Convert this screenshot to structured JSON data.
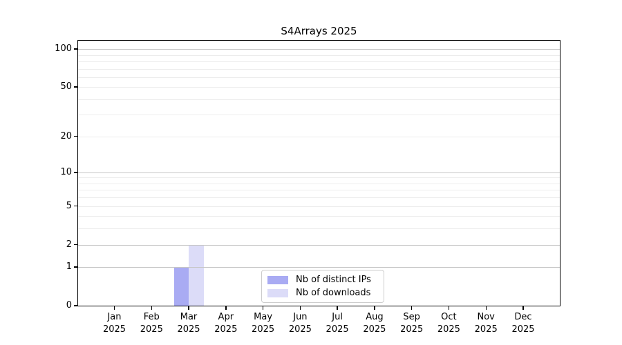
{
  "chart_data": {
    "type": "bar",
    "title": "S4Arrays 2025",
    "x_year_label": "2025",
    "categories": [
      "Jan",
      "Feb",
      "Mar",
      "Apr",
      "May",
      "Jun",
      "Jul",
      "Aug",
      "Sep",
      "Oct",
      "Nov",
      "Dec"
    ],
    "series": [
      {
        "name": "Nb of distinct IPs",
        "color": "#a9abf3",
        "values": [
          0,
          0,
          1,
          0,
          0,
          0,
          0,
          0,
          0,
          0,
          0,
          0
        ]
      },
      {
        "name": "Nb of downloads",
        "color": "#dcdcf8",
        "values": [
          0,
          0,
          2,
          0,
          0,
          0,
          0,
          0,
          0,
          0,
          0,
          0
        ]
      }
    ],
    "yscale": "log1p",
    "ylim": [
      0,
      116.3
    ],
    "yticks": [
      0,
      1,
      2,
      5,
      10,
      20,
      50,
      100
    ],
    "gridlines": {
      "major": [
        1,
        2,
        10,
        100
      ],
      "minor": [
        3,
        4,
        5,
        6,
        7,
        8,
        9,
        20,
        30,
        40,
        50,
        60,
        70,
        80,
        90
      ]
    },
    "legend": {
      "entries": [
        "Nb of distinct IPs",
        "Nb of downloads"
      ],
      "position": "inside-bottom-center"
    },
    "xlabel": "",
    "ylabel": "",
    "grid": true
  },
  "colors": {
    "background": "#ffffff",
    "axis": "#000000",
    "text": "#000000",
    "grid_major": "#c6c6c6",
    "grid_minor": "#ececec",
    "legend_border": "#cccccc",
    "legend_background": "#ffffff"
  }
}
